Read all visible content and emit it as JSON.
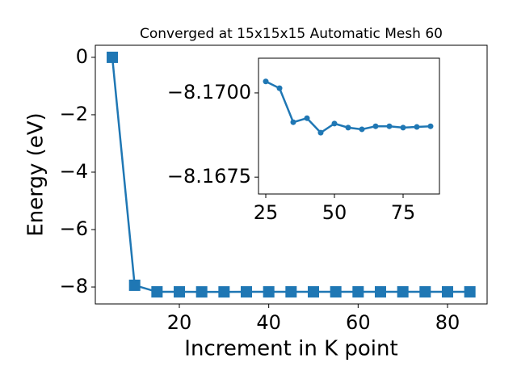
{
  "chart_data": [
    {
      "type": "line",
      "title": "Converged at 15x15x15 Automatic Mesh 60",
      "xlabel": "Increment in K point",
      "ylabel": "Energy (eV)",
      "x": [
        5,
        10,
        15,
        20,
        25,
        30,
        35,
        40,
        45,
        50,
        55,
        60,
        65,
        70,
        75,
        80,
        85
      ],
      "series": [
        {
          "name": "Energy",
          "color": "#1f77b4",
          "marker": "square",
          "values": [
            0,
            -7.94,
            -8.169,
            -8.169,
            -8.17034,
            -8.17014,
            -8.16913,
            -8.16925,
            -8.16882,
            -8.16909,
            -8.16897,
            -8.16892,
            -8.16901,
            -8.16901,
            -8.16897,
            -8.16899,
            -8.16901
          ]
        }
      ],
      "xlim": [
        1.2,
        88.86
      ],
      "ylim": [
        -8.59,
        0.42
      ],
      "xticks": [
        20,
        40,
        60,
        80
      ],
      "yticks": [
        0,
        {
          "value": -2,
          "label": "−2"
        },
        {
          "value": -4,
          "label": "−4"
        },
        {
          "value": -6,
          "label": "−6"
        },
        {
          "value": -8,
          "label": "−8"
        }
      ]
    },
    {
      "type": "line",
      "x": [
        25,
        30,
        35,
        40,
        45,
        50,
        55,
        60,
        65,
        70,
        75,
        80,
        85
      ],
      "series": [
        {
          "name": "Energy",
          "color": "#1f77b4",
          "marker": "circle",
          "values": [
            -8.17034,
            -8.17014,
            -8.16913,
            -8.16925,
            -8.16882,
            -8.16909,
            -8.16897,
            -8.16892,
            -8.16901,
            -8.16901,
            -8.16897,
            -8.16899,
            -8.16901
          ]
        }
      ],
      "xlim": [
        22.35,
        88.24
      ],
      "ylim": [
        -8.167,
        -8.17103
      ],
      "xticks": [
        25,
        50,
        75
      ],
      "yticks": [
        {
          "value": -8.17,
          "label": "−8.1700"
        },
        {
          "value": -8.1675,
          "label": "−8.1675"
        }
      ]
    }
  ]
}
